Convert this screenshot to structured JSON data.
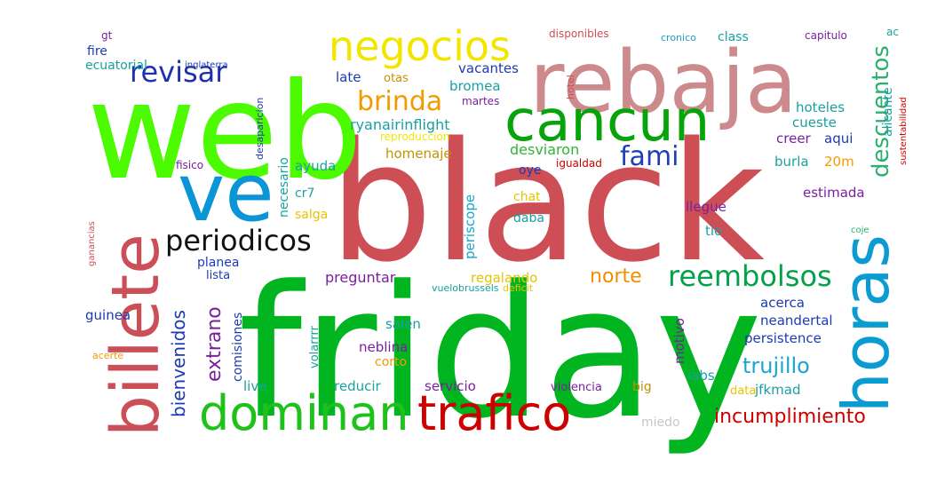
{
  "wordcloud": {
    "words": [
      {
        "text": "black",
        "color": "#cd4f55"
      },
      {
        "text": "friday",
        "color": "#00b520"
      },
      {
        "text": "web",
        "color": "#4cfb00"
      },
      {
        "text": "rebaja",
        "color": "#cc8a8c"
      },
      {
        "text": "cancun",
        "color": "#07a30a"
      },
      {
        "text": "ve",
        "color": "#0a95d6"
      },
      {
        "text": "billete",
        "color": "#cb4f57"
      },
      {
        "text": "horas",
        "color": "#0a9bd1"
      },
      {
        "text": "dominan",
        "color": "#1fc11b"
      },
      {
        "text": "trafico",
        "color": "#cc0000"
      },
      {
        "text": "negocios",
        "color": "#f2e600"
      },
      {
        "text": "periodicos",
        "color": "#111111"
      },
      {
        "text": "reembolsos",
        "color": "#04a04a"
      },
      {
        "text": "revisar",
        "color": "#1f2fb0"
      },
      {
        "text": "brinda",
        "color": "#f29b00"
      },
      {
        "text": "fami",
        "color": "#1f3fb5"
      },
      {
        "text": "descuentos",
        "color": "#2bb06d"
      },
      {
        "text": "incumplimiento",
        "color": "#cc0000"
      },
      {
        "text": "trujillo",
        "color": "#1aa6d0"
      },
      {
        "text": "norte",
        "color": "#f48c00"
      },
      {
        "text": "bienvenidos",
        "color": "#1d3bb0"
      },
      {
        "text": "extrano",
        "color": "#7a1fa0"
      },
      {
        "text": "ryanairinflight",
        "color": "#1aa0a0"
      },
      {
        "text": "desviaron",
        "color": "#2fb535"
      },
      {
        "text": "homenaje",
        "color": "#c29300"
      },
      {
        "text": "preguntar",
        "color": "#7a1fa0"
      },
      {
        "text": "periscope",
        "color": "#1aa6d0"
      },
      {
        "text": "persistence",
        "color": "#1d3bb0"
      },
      {
        "text": "neandertal",
        "color": "#1d3bb0"
      },
      {
        "text": "acerca",
        "color": "#1d3bb0"
      },
      {
        "text": "estimada",
        "color": "#7a1fa0"
      },
      {
        "text": "hoteles",
        "color": "#1aa0a0"
      },
      {
        "text": "cueste",
        "color": "#1aa0a0"
      },
      {
        "text": "creer",
        "color": "#7a1fa0"
      },
      {
        "text": "aqui",
        "color": "#1d3bb0"
      },
      {
        "text": "burla",
        "color": "#1aa0a0"
      },
      {
        "text": "20m",
        "color": "#f29b00"
      },
      {
        "text": "alicante",
        "color": "#1aa0a0"
      },
      {
        "text": "llegue",
        "color": "#7a1fa0"
      },
      {
        "text": "tio",
        "color": "#1aa0a0"
      },
      {
        "text": "labs",
        "color": "#1aa0a0"
      },
      {
        "text": "jfkmad",
        "color": "#1aa0a0"
      },
      {
        "text": "data",
        "color": "#e5c400"
      },
      {
        "text": "big",
        "color": "#c29300"
      },
      {
        "text": "motivo",
        "color": "#7a1fa0"
      },
      {
        "text": "violencia",
        "color": "#7a1fa0"
      },
      {
        "text": "servicio",
        "color": "#7a1fa0"
      },
      {
        "text": "reducir",
        "color": "#1aa0a0"
      },
      {
        "text": "corto",
        "color": "#f29b00"
      },
      {
        "text": "neblina",
        "color": "#7a1fa0"
      },
      {
        "text": "salen",
        "color": "#1aa0a0"
      },
      {
        "text": "volarrrr",
        "color": "#1aa0a0"
      },
      {
        "text": "live",
        "color": "#1aa0a0"
      },
      {
        "text": "comisiones",
        "color": "#1d3bb0"
      },
      {
        "text": "guinea",
        "color": "#1d3bb0"
      },
      {
        "text": "planea",
        "color": "#1d3bb0"
      },
      {
        "text": "lista",
        "color": "#1d3bb0"
      },
      {
        "text": "regalando",
        "color": "#e5c400"
      },
      {
        "text": "vuelobrussels",
        "color": "#1aa0a0"
      },
      {
        "text": "deficit",
        "color": "#e5c400"
      },
      {
        "text": "miedo",
        "color": "#c7c7c7"
      },
      {
        "text": "acerte",
        "color": "#f29b00"
      },
      {
        "text": "ganancias",
        "color": "#cc4f55"
      },
      {
        "text": "necesario",
        "color": "#1aa0a0"
      },
      {
        "text": "ayuda",
        "color": "#1aa0a0"
      },
      {
        "text": "cr7",
        "color": "#1aa0a0"
      },
      {
        "text": "salga",
        "color": "#e5c400"
      },
      {
        "text": "fisico",
        "color": "#7a1fa0"
      },
      {
        "text": "desaparicion",
        "color": "#1d3bb0"
      },
      {
        "text": "reproduccion",
        "color": "#f2e600"
      },
      {
        "text": "igualdad",
        "color": "#cc0000"
      },
      {
        "text": "oye",
        "color": "#1d3bb0"
      },
      {
        "text": "chat",
        "color": "#e5c400"
      },
      {
        "text": "daba",
        "color": "#1aa0a0"
      },
      {
        "text": "bromea",
        "color": "#1aa0a0"
      },
      {
        "text": "martes",
        "color": "#7a1fa0"
      },
      {
        "text": "vacantes",
        "color": "#1d3bb0"
      },
      {
        "text": "otas",
        "color": "#c29300"
      },
      {
        "text": "late",
        "color": "#1d3bb0"
      },
      {
        "text": "ecuatorial",
        "color": "#1aa0a0"
      },
      {
        "text": "inglaterra",
        "color": "#1d3bb0"
      },
      {
        "text": "fire",
        "color": "#1d3bb0"
      },
      {
        "text": "gt",
        "color": "#7a1fa0"
      },
      {
        "text": "disponibles",
        "color": "#cc4f55"
      },
      {
        "text": "hotel",
        "color": "#cc4f55"
      },
      {
        "text": "cronico",
        "color": "#1aa0d0"
      },
      {
        "text": "class",
        "color": "#1aa0a0"
      },
      {
        "text": "capitulo",
        "color": "#7a1fa0"
      },
      {
        "text": "ac",
        "color": "#1aa0a0"
      },
      {
        "text": "sustentabilidad",
        "color": "#cc0000"
      },
      {
        "text": "coje",
        "color": "#2bb06d"
      }
    ]
  }
}
